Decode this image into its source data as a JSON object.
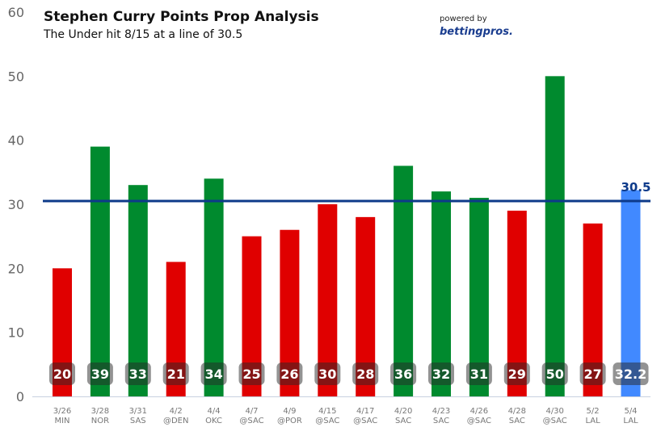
{
  "chart_data": {
    "type": "bar",
    "title": "Stephen Curry Points Prop Analysis",
    "subtitle": "The Under hit 8/15 at a line of 30.5",
    "powered_by": "powered by",
    "brand": "bettingpros.",
    "categories": [
      {
        "date": "3/26",
        "opp": "MIN"
      },
      {
        "date": "3/28",
        "opp": "NOR"
      },
      {
        "date": "3/31",
        "opp": "SAS"
      },
      {
        "date": "4/2",
        "opp": "@DEN"
      },
      {
        "date": "4/4",
        "opp": "OKC"
      },
      {
        "date": "4/7",
        "opp": "@SAC"
      },
      {
        "date": "4/9",
        "opp": "@POR"
      },
      {
        "date": "4/15",
        "opp": "@SAC"
      },
      {
        "date": "4/17",
        "opp": "@SAC"
      },
      {
        "date": "4/20",
        "opp": "SAC"
      },
      {
        "date": "4/23",
        "opp": "SAC"
      },
      {
        "date": "4/26",
        "opp": "@SAC"
      },
      {
        "date": "4/28",
        "opp": "SAC"
      },
      {
        "date": "4/30",
        "opp": "@SAC"
      },
      {
        "date": "5/2",
        "opp": "LAL"
      },
      {
        "date": "5/4",
        "opp": "LAL"
      }
    ],
    "values": [
      20,
      39,
      33,
      21,
      34,
      25,
      26,
      30,
      28,
      36,
      32,
      31,
      29,
      50,
      27,
      32.2
    ],
    "value_labels": [
      "20",
      "39",
      "33",
      "21",
      "34",
      "25",
      "26",
      "30",
      "28",
      "36",
      "32",
      "31",
      "29",
      "50",
      "27",
      "32.2"
    ],
    "projection_index": 15,
    "line": {
      "value": 30.5,
      "label": "30.5",
      "color": "#0d3a8a"
    },
    "colors": {
      "over": "#008a2e",
      "under": "#e00000",
      "projection": "#4189ff"
    },
    "ylim": [
      0,
      60
    ],
    "yticks": [
      0,
      10,
      20,
      30,
      40,
      50,
      60
    ],
    "grid": false,
    "legend": "none"
  }
}
